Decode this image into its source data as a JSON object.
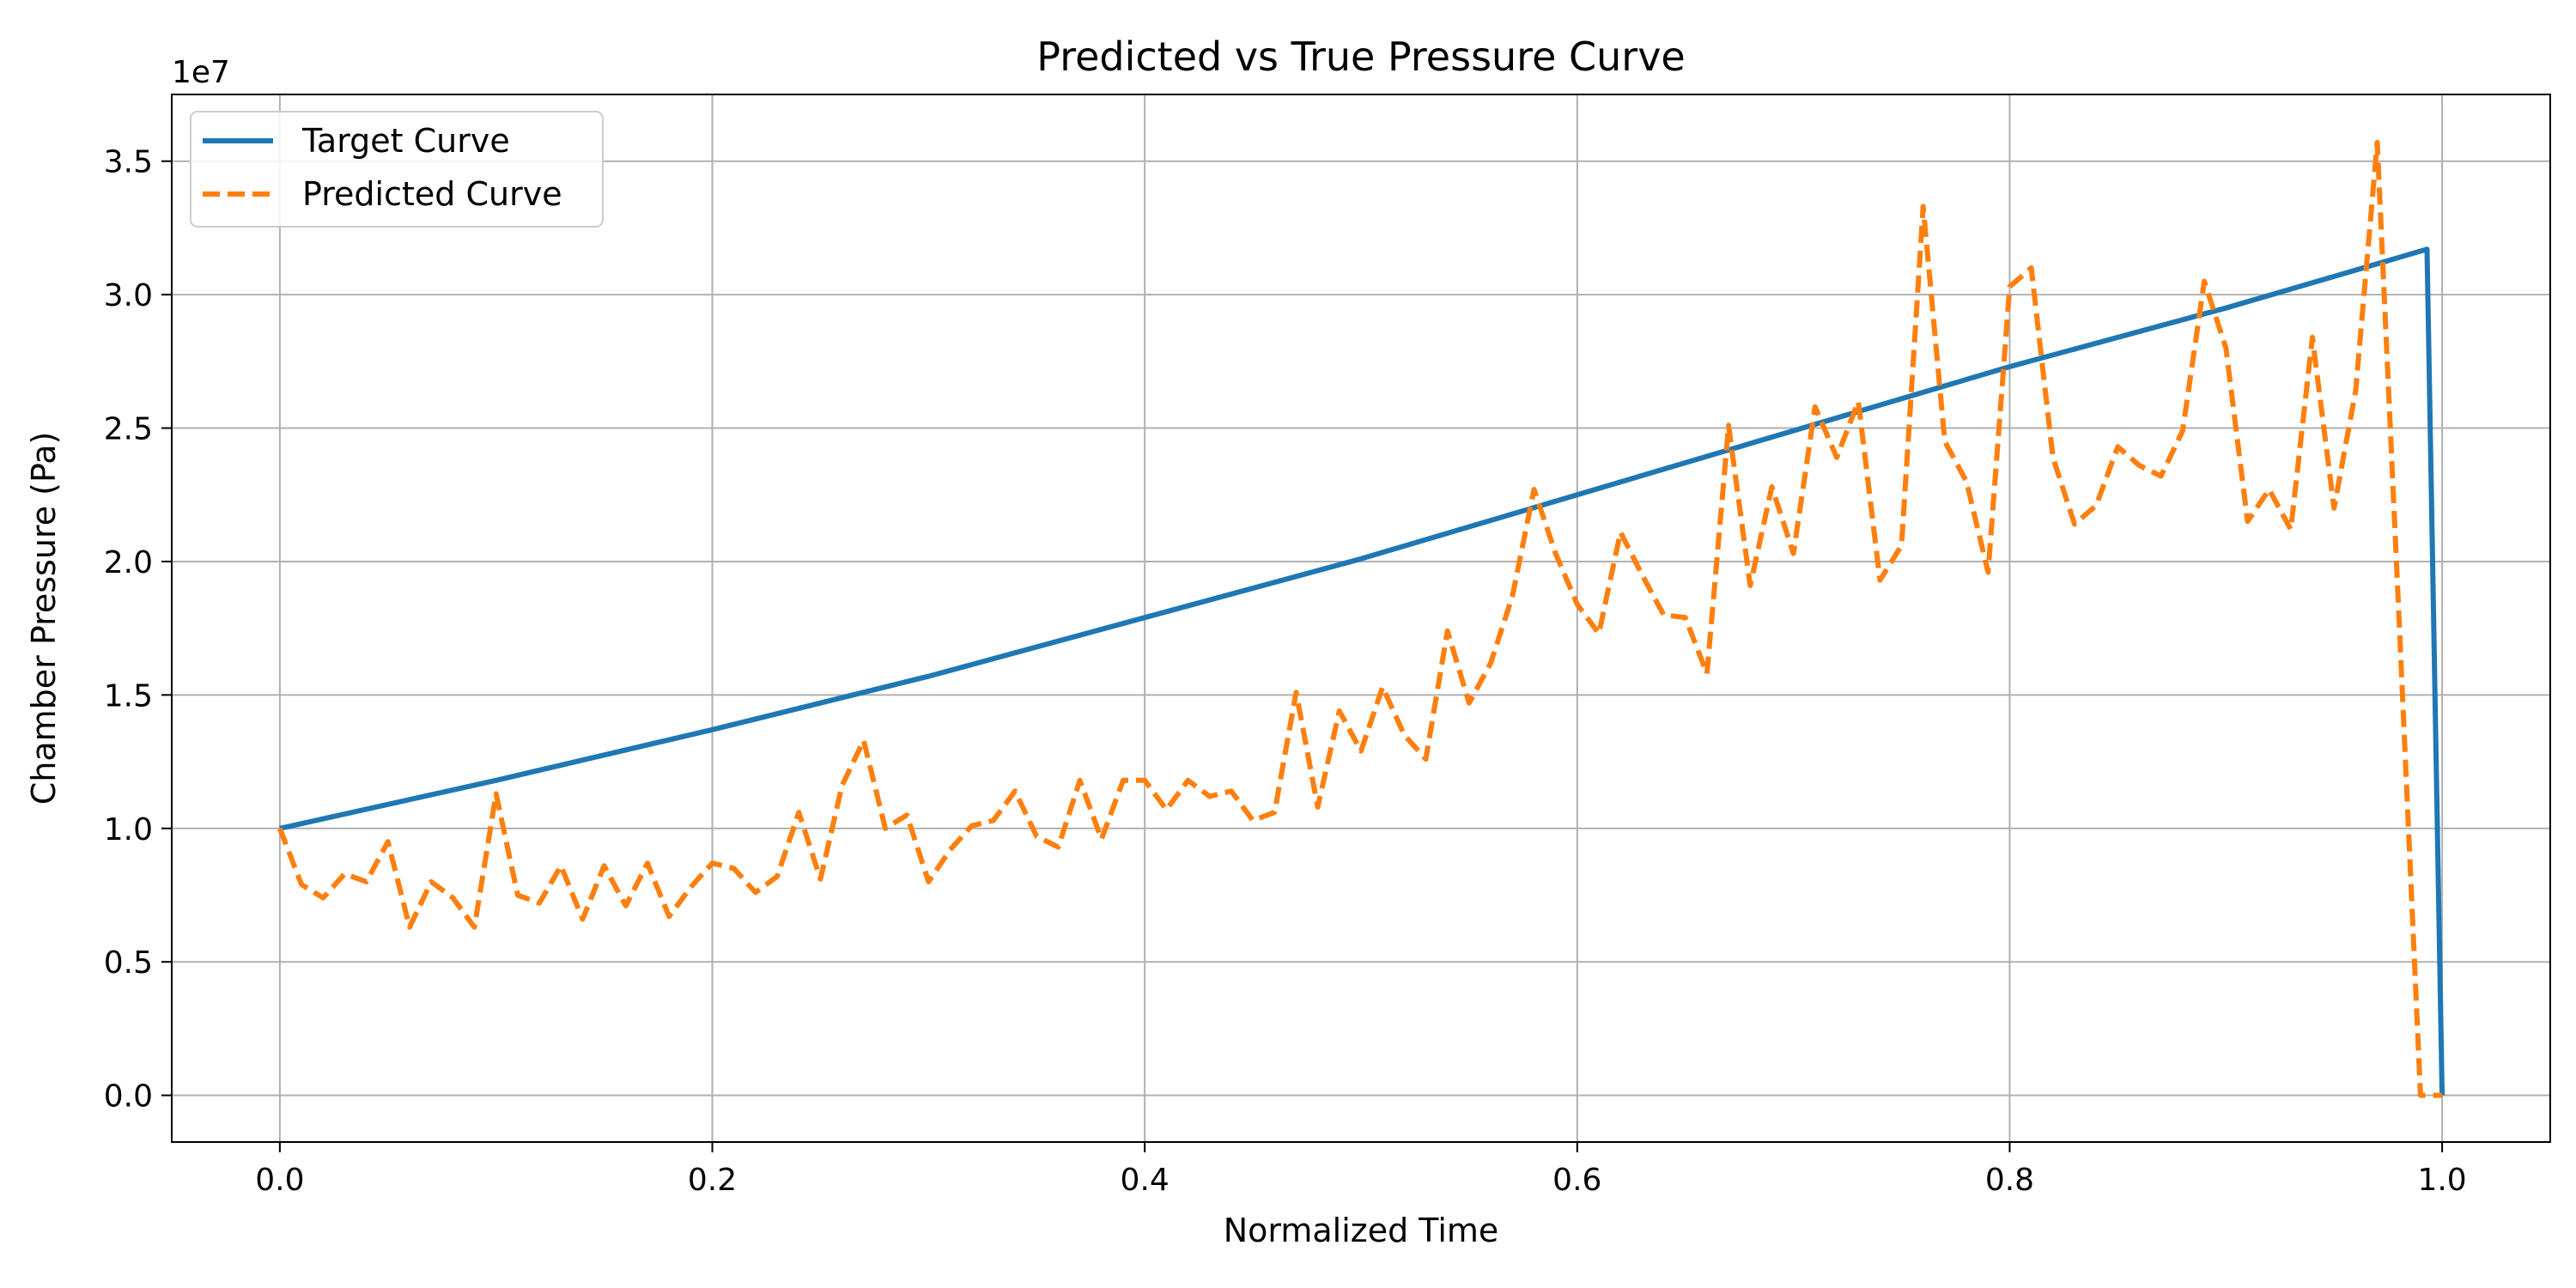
{
  "chart_data": {
    "type": "line",
    "title": "Predicted vs True Pressure Curve",
    "xlabel": "Normalized Time",
    "ylabel": "Chamber Pressure (Pa)",
    "y_offset_label": "1e7",
    "y_scale_factor": 10000000,
    "xlim": [
      -0.05,
      1.05
    ],
    "ylim": [
      -1750000,
      37500000
    ],
    "xticks": [
      0.0,
      0.2,
      0.4,
      0.6,
      0.8,
      1.0
    ],
    "xtick_labels": [
      "0.0",
      "0.2",
      "0.4",
      "0.6",
      "0.8",
      "1.0"
    ],
    "yticks": [
      0,
      5000000,
      10000000,
      15000000,
      20000000,
      25000000,
      30000000,
      35000000
    ],
    "ytick_labels": [
      "0.0",
      "0.5",
      "1.0",
      "1.5",
      "2.0",
      "2.5",
      "3.0",
      "3.5"
    ],
    "grid": true,
    "legend_position": "top-left",
    "series": [
      {
        "name": "Target Curve",
        "color": "#1f77b4",
        "style": "solid",
        "x": [
          0.0,
          0.1,
          0.2,
          0.3,
          0.4,
          0.5,
          0.6,
          0.7,
          0.8,
          0.9,
          0.993,
          1.0
        ],
        "y": [
          10000000,
          11800000,
          13700000,
          15700000,
          17900000,
          20100000,
          22500000,
          24900000,
          27300000,
          29500000,
          31700000,
          0
        ]
      },
      {
        "name": "Predicted Curve",
        "color": "#ff7f0e",
        "style": "dashed",
        "x": [
          0.0,
          0.01,
          0.02,
          0.03,
          0.04,
          0.05,
          0.06,
          0.07,
          0.08,
          0.09,
          0.1,
          0.11,
          0.12,
          0.13,
          0.14,
          0.15,
          0.16,
          0.17,
          0.18,
          0.19,
          0.2,
          0.21,
          0.22,
          0.23,
          0.24,
          0.25,
          0.26,
          0.27,
          0.28,
          0.29,
          0.3,
          0.31,
          0.32,
          0.33,
          0.34,
          0.35,
          0.36,
          0.37,
          0.38,
          0.39,
          0.4,
          0.41,
          0.42,
          0.43,
          0.44,
          0.45,
          0.46,
          0.47,
          0.48,
          0.49,
          0.5,
          0.51,
          0.52,
          0.53,
          0.54,
          0.55,
          0.56,
          0.57,
          0.58,
          0.59,
          0.6,
          0.61,
          0.62,
          0.63,
          0.64,
          0.65,
          0.66,
          0.67,
          0.68,
          0.69,
          0.7,
          0.71,
          0.72,
          0.73,
          0.74,
          0.75,
          0.76,
          0.77,
          0.78,
          0.79,
          0.8,
          0.81,
          0.82,
          0.83,
          0.84,
          0.85,
          0.86,
          0.87,
          0.88,
          0.89,
          0.9,
          0.91,
          0.92,
          0.93,
          0.94,
          0.95,
          0.96,
          0.97,
          0.98,
          0.99,
          1.0
        ],
        "y": [
          10000000,
          7900000,
          7400000,
          8300000,
          8000000,
          9500000,
          6300000,
          8000000,
          7400000,
          6300000,
          11300000,
          7500000,
          7200000,
          8600000,
          6600000,
          8600000,
          7100000,
          8700000,
          6700000,
          7800000,
          8700000,
          8500000,
          7600000,
          8200000,
          10600000,
          8100000,
          11600000,
          13300000,
          10000000,
          10500000,
          8000000,
          9200000,
          10100000,
          10300000,
          11400000,
          9700000,
          9300000,
          11800000,
          9600000,
          11800000,
          11800000,
          10700000,
          11800000,
          11200000,
          11400000,
          10300000,
          10600000,
          15100000,
          10800000,
          14400000,
          12900000,
          15300000,
          13500000,
          12600000,
          17400000,
          14700000,
          16200000,
          18700000,
          22700000,
          20300000,
          18400000,
          17300000,
          21100000,
          19500000,
          18000000,
          17900000,
          15800000,
          25100000,
          19100000,
          22800000,
          20300000,
          25800000,
          23900000,
          26000000,
          19300000,
          20600000,
          33300000,
          24500000,
          23000000,
          19600000,
          30300000,
          31000000,
          23900000,
          21400000,
          22100000,
          24300000,
          23600000,
          23200000,
          24900000,
          30500000,
          28000000,
          21500000,
          22700000,
          21200000,
          28400000,
          22000000,
          26400000,
          35700000,
          18000000,
          0,
          0
        ]
      }
    ]
  }
}
